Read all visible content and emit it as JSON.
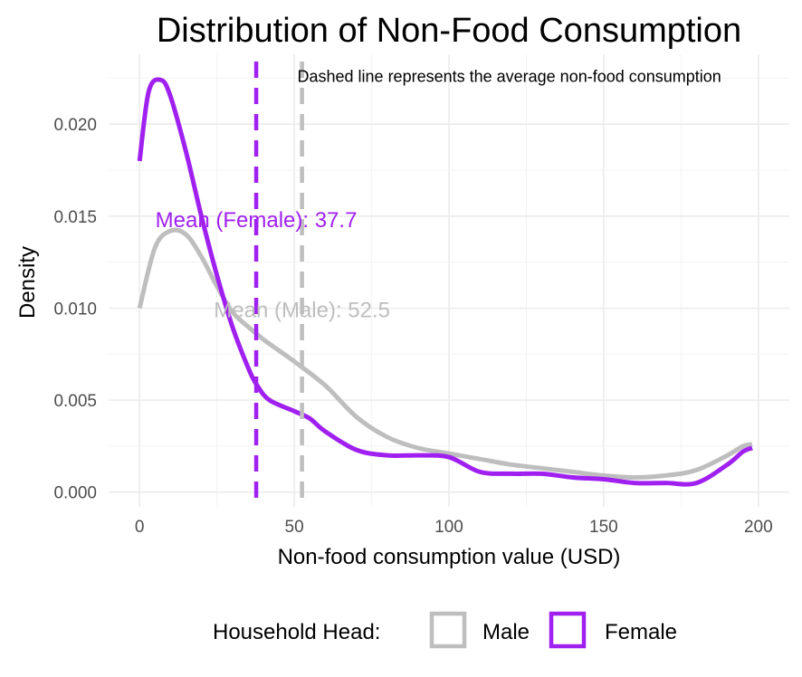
{
  "chart_data": {
    "type": "line",
    "title": "Distribution of Non-Food Consumption",
    "xlabel": "Non-food consumption value (USD)",
    "ylabel": "Density",
    "xlim": [
      -10,
      210
    ],
    "ylim": [
      -0.0008,
      0.0238
    ],
    "x_ticks": [
      0,
      50,
      100,
      150,
      200
    ],
    "x_tick_labels": [
      "0",
      "50",
      "100",
      "150",
      "200"
    ],
    "y_ticks": [
      0.0,
      0.005,
      0.01,
      0.015,
      0.02
    ],
    "y_tick_labels": [
      "0.000",
      "0.005",
      "0.010",
      "0.015",
      "0.020"
    ],
    "grid": true,
    "legend": {
      "title": "Household Head:",
      "position": "bottom",
      "entries": [
        "Male",
        "Female"
      ]
    },
    "series": [
      {
        "name": "Male",
        "color": "#BEBEBE",
        "x": [
          0,
          5,
          10,
          15,
          20,
          25,
          30,
          35,
          40,
          45,
          50,
          60,
          70,
          80,
          90,
          100,
          110,
          120,
          130,
          140,
          150,
          160,
          170,
          180,
          190,
          195,
          198
        ],
        "y": [
          0.01,
          0.0133,
          0.0142,
          0.014,
          0.0128,
          0.0112,
          0.0098,
          0.009,
          0.0083,
          0.0077,
          0.0071,
          0.0058,
          0.0041,
          0.003,
          0.0024,
          0.0021,
          0.0018,
          0.0015,
          0.0013,
          0.0011,
          0.0009,
          0.0008,
          0.0009,
          0.0012,
          0.002,
          0.0025,
          0.0026
        ]
      },
      {
        "name": "Female",
        "color": "#A020F0",
        "x": [
          0,
          3,
          7,
          10,
          15,
          20,
          25,
          30,
          35,
          38,
          42,
          50,
          55,
          60,
          70,
          80,
          90,
          100,
          110,
          120,
          130,
          140,
          150,
          160,
          170,
          180,
          190,
          195,
          198
        ],
        "y": [
          0.018,
          0.0218,
          0.0224,
          0.0215,
          0.0185,
          0.015,
          0.0118,
          0.009,
          0.0068,
          0.0058,
          0.005,
          0.0044,
          0.004,
          0.0033,
          0.0023,
          0.002,
          0.002,
          0.0019,
          0.0011,
          0.001,
          0.001,
          0.0008,
          0.0007,
          0.0005,
          0.0005,
          0.0005,
          0.0015,
          0.0022,
          0.0024
        ]
      }
    ],
    "mean_lines": [
      {
        "series": "Male",
        "value": 52.5,
        "label": "Mean (Male): 52.5",
        "color": "#BEBEBE",
        "label_y": 0.0099
      },
      {
        "series": "Female",
        "value": 37.7,
        "label": "Mean (Female): 37.7",
        "color": "#A020F0",
        "label_y": 0.0148
      }
    ],
    "annotations": [
      {
        "text": "Dashed line represents the average non-food consumption",
        "x": 51,
        "y": 0.0219
      }
    ]
  }
}
